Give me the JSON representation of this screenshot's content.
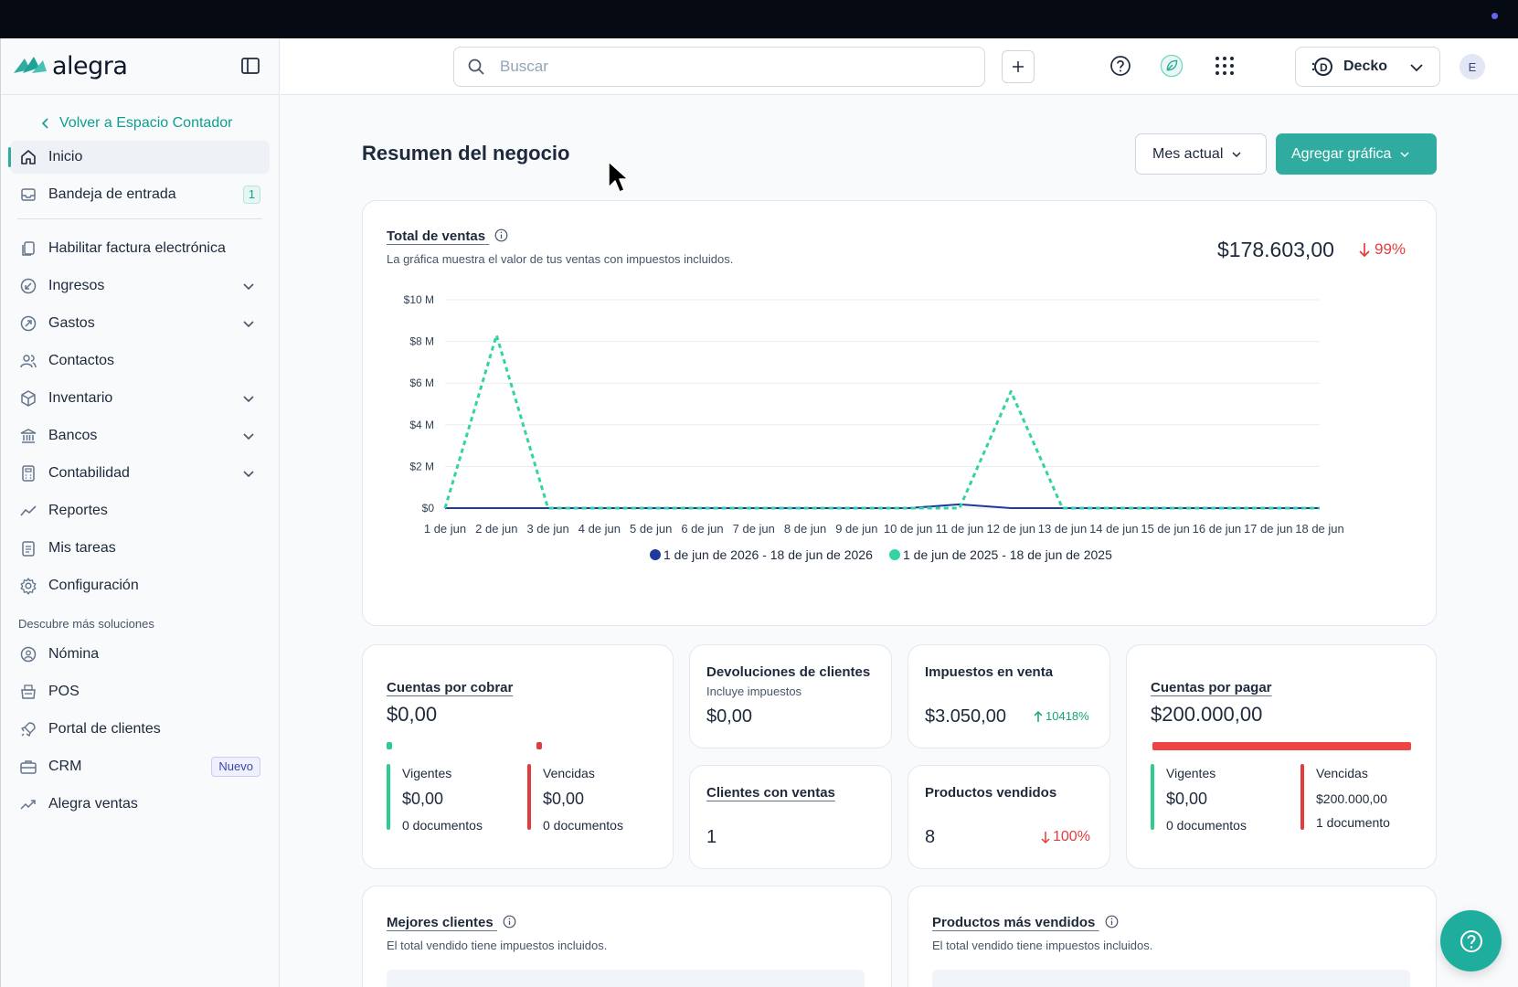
{
  "sidebar": {
    "logo_text": "alegra",
    "back_link": "Volver a Espacio Contador",
    "items": [
      {
        "label": "Inicio",
        "icon": "home-icon"
      },
      {
        "label": "Bandeja de entrada",
        "icon": "inbox-icon",
        "badge": "1"
      },
      {
        "label": "Habilitar factura electrónica",
        "icon": "document-icon"
      },
      {
        "label": "Ingresos",
        "icon": "income-icon"
      },
      {
        "label": "Gastos",
        "icon": "expense-icon"
      },
      {
        "label": "Contactos",
        "icon": "contacts-icon"
      },
      {
        "label": "Inventario",
        "icon": "box-icon"
      },
      {
        "label": "Bancos",
        "icon": "bank-icon"
      },
      {
        "label": "Contabilidad",
        "icon": "calculator-icon"
      },
      {
        "label": "Reportes",
        "icon": "chart-line-icon"
      },
      {
        "label": "Mis tareas",
        "icon": "clipboard-icon"
      },
      {
        "label": "Configuración",
        "icon": "gear-icon"
      }
    ],
    "section_title": "Descubre más soluciones",
    "extra_items": [
      {
        "label": "Nómina",
        "icon": "payroll-icon"
      },
      {
        "label": "POS",
        "icon": "pos-icon"
      },
      {
        "label": "Portal de clientes",
        "icon": "portal-icon"
      },
      {
        "label": "CRM",
        "icon": "crm-icon",
        "badge": "Nuevo"
      },
      {
        "label": "Alegra ventas",
        "icon": "trend-icon"
      }
    ]
  },
  "header": {
    "search_placeholder": "Buscar",
    "company_name": "Decko",
    "avatar_initial": "E"
  },
  "main": {
    "title": "Resumen del negocio",
    "period_label": "Mes actual",
    "add_chart_label": "Agregar gráfica"
  },
  "sales": {
    "title": "Total de ventas",
    "subtitle": "La gráfica muestra el valor de tus ventas con impuestos incluidos.",
    "total": "$178.603,00",
    "change": "99%",
    "change_direction": "down"
  },
  "chart_data": {
    "type": "line",
    "x": [
      "1 de jun",
      "2 de jun",
      "3 de jun",
      "4 de jun",
      "5 de jun",
      "6 de jun",
      "7 de jun",
      "8 de jun",
      "9 de jun",
      "10 de jun",
      "11 de jun",
      "12 de jun",
      "13 de jun",
      "14 de jun",
      "15 de jun",
      "16 de jun",
      "17 de jun",
      "18 de jun"
    ],
    "y_ticks": [
      "$0",
      "$2 M",
      "$4 M",
      "$6 M",
      "$8 M",
      "$10 M"
    ],
    "ylim": [
      0,
      10000000
    ],
    "grid": true,
    "legend_position": "bottom",
    "series": [
      {
        "name": "1 de jun de 2026 - 18 de jun de 2026",
        "color": "#1e3a9e",
        "style": "solid",
        "values": [
          0,
          0,
          0,
          0,
          0,
          0,
          0,
          0,
          0,
          0,
          178603,
          0,
          0,
          0,
          0,
          0,
          0,
          0
        ]
      },
      {
        "name": "1 de jun de 2025 - 18 de jun de 2025",
        "color": "#34d3a3",
        "style": "dashed",
        "values": [
          0,
          8300000,
          0,
          0,
          0,
          0,
          0,
          0,
          0,
          0,
          0,
          5600000,
          0,
          0,
          0,
          0,
          0,
          0
        ]
      }
    ]
  },
  "receivables": {
    "title": "Cuentas por cobrar",
    "amount": "$0,00",
    "current_label": "Vigentes",
    "current_amount": "$0,00",
    "current_docs": "0 documentos",
    "overdue_label": "Vencidas",
    "overdue_amount": "$0,00",
    "overdue_docs": "0 documentos"
  },
  "returns": {
    "title": "Devoluciones de clientes",
    "subtitle": "Incluye impuestos",
    "amount": "$0,00"
  },
  "taxes": {
    "title": "Impuestos en venta",
    "amount": "$3.050,00",
    "change": "10418%"
  },
  "clients_with_sales": {
    "title": "Clientes con ventas",
    "value": "1"
  },
  "products_sold": {
    "title": "Productos vendidos",
    "value": "8",
    "change": "100%"
  },
  "payables": {
    "title": "Cuentas por pagar",
    "amount": "$200.000,00",
    "overdue_fraction": 1.0,
    "current_label": "Vigentes",
    "current_amount": "$0,00",
    "current_docs": "0 documentos",
    "overdue_label": "Vencidas",
    "overdue_amount": "$200.000,00",
    "overdue_docs": "1 documento"
  },
  "best_clients": {
    "title": "Mejores clientes",
    "subtitle": "El total vendido tiene impuestos incluidos."
  },
  "best_products": {
    "title": "Productos más vendidos",
    "subtitle": "El total vendido tiene impuestos incluidos."
  },
  "colors": {
    "brand": "#30aba0",
    "negative": "#e13d3d",
    "positive": "#16a37b"
  }
}
